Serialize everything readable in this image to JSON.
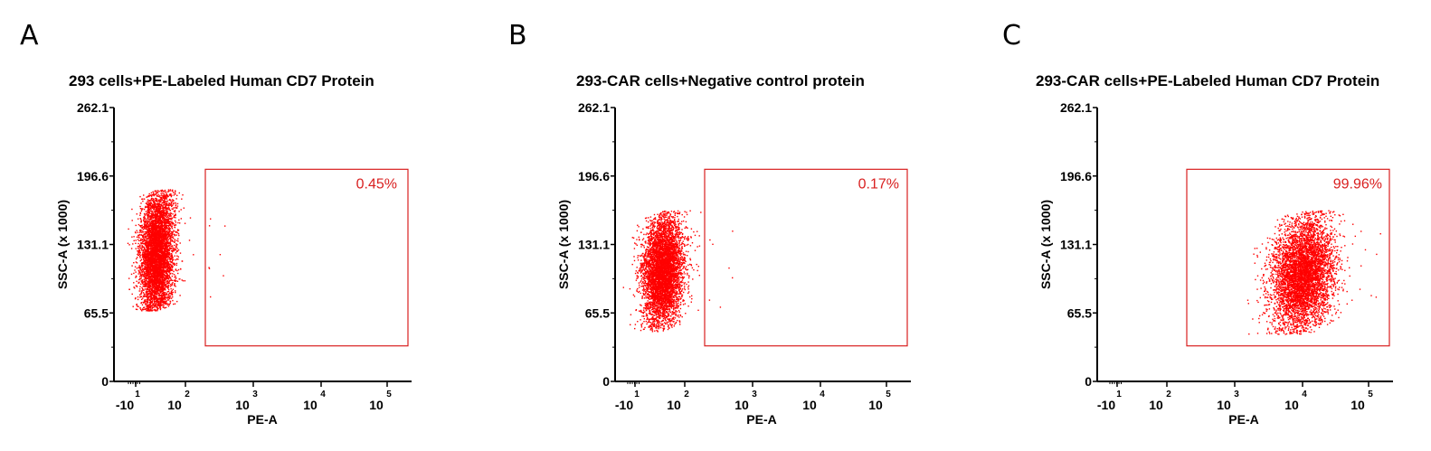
{
  "chart_data": [
    {
      "type": "scatter",
      "panel": "A",
      "title": "293 cells+PE-Labeled Human CD7 Protein",
      "xlabel": "PE-A",
      "ylabel": "SSC-A (x 1000)",
      "x_ticks": [
        {
          "base": "-10",
          "exp": "1"
        },
        {
          "base": "10",
          "exp": "2"
        },
        {
          "base": "10",
          "exp": "3"
        },
        {
          "base": "10",
          "exp": "4"
        },
        {
          "base": "10",
          "exp": "5"
        }
      ],
      "y_ticks": [
        "0",
        "65.5",
        "131.1",
        "196.6",
        "262.1"
      ],
      "ylim": [
        0,
        262.1
      ],
      "x_scale": "biexponential",
      "gate": {
        "percent_label": "0.45%",
        "x_from_decade": 1.3,
        "x_to_decade": 4.0,
        "y_from": 34,
        "y_to": 203
      },
      "population": {
        "center_decade": 0.42,
        "spread_decade": 0.17,
        "center_y": 123,
        "spread_y": 32,
        "y_min": 68,
        "y_max": 184
      },
      "color": "#ff0000",
      "gate_color": "#d92020"
    },
    {
      "type": "scatter",
      "panel": "B",
      "title": "293-CAR cells+Negative control protein",
      "xlabel": "PE-A",
      "ylabel": "SSC-A (x 1000)",
      "x_ticks": [
        {
          "base": "-10",
          "exp": "1"
        },
        {
          "base": "10",
          "exp": "2"
        },
        {
          "base": "10",
          "exp": "3"
        },
        {
          "base": "10",
          "exp": "4"
        },
        {
          "base": "10",
          "exp": "5"
        }
      ],
      "y_ticks": [
        "0",
        "65.5",
        "131.1",
        "196.6",
        "262.1"
      ],
      "ylim": [
        0,
        262.1
      ],
      "x_scale": "biexponential",
      "gate": {
        "percent_label": "0.17%",
        "x_from_decade": 1.3,
        "x_to_decade": 4.0,
        "y_from": 34,
        "y_to": 203
      },
      "population": {
        "center_decade": 0.55,
        "spread_decade": 0.2,
        "center_y": 107,
        "spread_y": 26,
        "y_min": 48,
        "y_max": 164
      },
      "color": "#ff0000",
      "gate_color": "#d92020"
    },
    {
      "type": "scatter",
      "panel": "C",
      "title": "293-CAR cells+PE-Labeled Human CD7 Protein",
      "xlabel": "PE-A",
      "ylabel": "SSC-A (x 1000)",
      "x_ticks": [
        {
          "base": "-10",
          "exp": "1"
        },
        {
          "base": "10",
          "exp": "2"
        },
        {
          "base": "10",
          "exp": "3"
        },
        {
          "base": "10",
          "exp": "4"
        },
        {
          "base": "10",
          "exp": "5"
        }
      ],
      "y_ticks": [
        "0",
        "65.5",
        "131.1",
        "196.6",
        "262.1"
      ],
      "ylim": [
        0,
        262.1
      ],
      "x_scale": "biexponential",
      "gate": {
        "percent_label": "99.96%",
        "x_from_decade": 1.3,
        "x_to_decade": 4.0,
        "y_from": 34,
        "y_to": 203
      },
      "population": {
        "center_decade": 3.0,
        "spread_decade": 0.23,
        "center_y": 103,
        "spread_y": 27,
        "y_min": 45,
        "y_max": 164
      },
      "color": "#ff0000",
      "gate_color": "#d92020"
    }
  ]
}
